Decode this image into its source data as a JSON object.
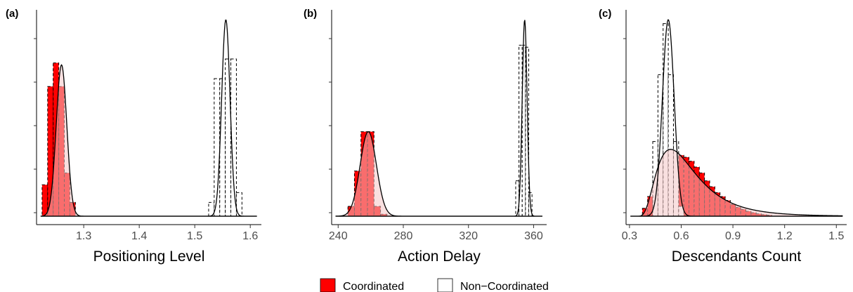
{
  "legend": {
    "coordinated": "Coordinated",
    "non_coordinated": "Non−Coordinated",
    "coordinated_color": "#ff0000",
    "coordinated_density_fill": "#f4c6c6",
    "non_coordinated_color": "#ffffff"
  },
  "chart_data": [
    {
      "type": "histogram-density",
      "tag": "(a)",
      "xlabel": "Positioning Level",
      "xlim": [
        1.215,
        1.62
      ],
      "xticks": [
        1.3,
        1.4,
        1.5,
        1.6
      ],
      "tick_labels": [
        "1.3",
        "1.4",
        "1.5",
        "1.6"
      ],
      "ymax": 1.0,
      "series": [
        {
          "name": "Coordinated",
          "bin_width": 0.01,
          "bins_x": [
            1.23,
            1.24,
            1.25,
            1.26,
            1.27,
            1.28
          ],
          "bins_h": [
            0.16,
            0.66,
            0.78,
            0.66,
            0.22,
            0.07
          ],
          "density": {
            "mean": 1.26,
            "sd": 0.0095,
            "peak": 0.77
          }
        },
        {
          "name": "Non−Coordinated",
          "bin_width": 0.01,
          "bins_x": [
            1.53,
            1.54,
            1.55,
            1.56,
            1.57,
            1.58
          ],
          "bins_h": [
            0.07,
            0.7,
            0.7,
            0.8,
            0.8,
            0.12
          ],
          "density": {
            "mean": 1.556,
            "sd": 0.0075,
            "peak": 1.0
          }
        }
      ]
    },
    {
      "type": "histogram-density",
      "tag": "(b)",
      "xlabel": "Action Delay",
      "xlim": [
        236,
        368
      ],
      "xticks": [
        240,
        280,
        320,
        360
      ],
      "tick_labels": [
        "240",
        "280",
        "320",
        "360"
      ],
      "ymax": 1.0,
      "series": [
        {
          "name": "Coordinated",
          "bin_width": 4,
          "bins_x": [
            248,
            252,
            256,
            260,
            264,
            268
          ],
          "bins_h": [
            0.05,
            0.23,
            0.43,
            0.43,
            0.05,
            0.01
          ],
          "density": {
            "mean": 258.5,
            "sd": 5.0,
            "peak": 0.43
          }
        },
        {
          "name": "Non−Coordinated",
          "bin_width": 2,
          "bins_x": [
            350,
            352,
            354,
            356,
            358
          ],
          "bins_h": [
            0.18,
            0.87,
            0.87,
            0.86,
            0.12
          ],
          "density": {
            "mean": 354.5,
            "sd": 1.5,
            "peak": 1.0
          }
        }
      ]
    },
    {
      "type": "histogram-density",
      "tag": "(c)",
      "xlabel": "Descendants Count",
      "xlim": [
        0.28,
        1.56
      ],
      "xticks": [
        0.3,
        0.6,
        0.9,
        1.2,
        1.5
      ],
      "tick_labels": [
        "0.3",
        "0.6",
        "0.9",
        "1.2",
        "1.5"
      ],
      "ymax": 1.0,
      "series": [
        {
          "name": "Coordinated",
          "bin_width": 0.03,
          "bins_x": [
            0.39,
            0.42,
            0.45,
            0.48,
            0.51,
            0.54,
            0.57,
            0.6,
            0.63,
            0.66,
            0.69,
            0.72,
            0.75,
            0.78,
            0.81,
            0.84,
            0.87,
            0.9,
            0.93,
            0.96,
            0.99,
            1.02,
            1.05,
            1.08,
            1.11
          ],
          "bins_h": [
            0.04,
            0.1,
            0.2,
            0.28,
            0.33,
            0.33,
            0.32,
            0.31,
            0.3,
            0.28,
            0.25,
            0.22,
            0.18,
            0.15,
            0.12,
            0.1,
            0.08,
            0.06,
            0.045,
            0.035,
            0.025,
            0.018,
            0.012,
            0.008,
            0.005
          ],
          "density": {
            "mode": 0.55,
            "skew_right": true,
            "peak": 0.34
          }
        },
        {
          "name": "Non−Coordinated",
          "bin_width": 0.03,
          "bins_x": [
            0.45,
            0.48,
            0.51,
            0.54,
            0.57,
            0.6
          ],
          "bins_h": [
            0.38,
            0.72,
            0.98,
            0.72,
            0.38,
            0.05
          ],
          "density": {
            "mean": 0.525,
            "sd": 0.034,
            "peak": 1.0
          }
        }
      ]
    }
  ]
}
